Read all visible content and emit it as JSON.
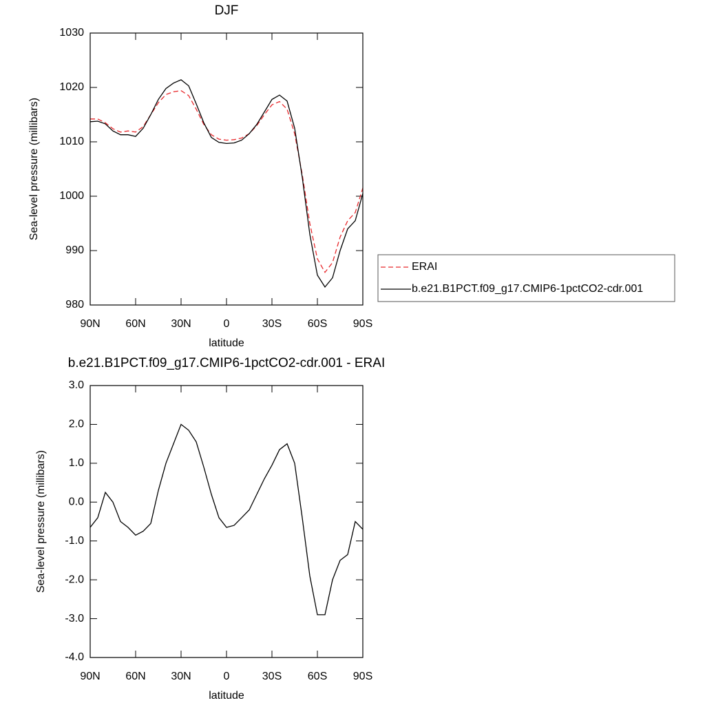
{
  "chart_data": [
    {
      "type": "line",
      "title": "DJF",
      "xlabel": "latitude",
      "ylabel": "Sea-level pressure (millibars)",
      "x": [
        90,
        85,
        80,
        75,
        70,
        65,
        60,
        55,
        50,
        45,
        40,
        35,
        30,
        25,
        20,
        15,
        10,
        5,
        0,
        -5,
        -10,
        -15,
        -20,
        -25,
        -30,
        -35,
        -40,
        -45,
        -50,
        -55,
        -60,
        -65,
        -70,
        -75,
        -80,
        -85,
        -90
      ],
      "series": [
        {
          "name": "ERAI",
          "color": "#e8272a",
          "dashed": true,
          "values": [
            1014.2,
            1014.2,
            1013.5,
            1012.4,
            1011.8,
            1012.0,
            1011.8,
            1012.8,
            1015.0,
            1017.2,
            1018.7,
            1019.2,
            1019.4,
            1018.5,
            1016.0,
            1013.2,
            1011.3,
            1010.5,
            1010.3,
            1010.4,
            1010.7,
            1011.5,
            1013.0,
            1015.0,
            1016.8,
            1017.4,
            1016.0,
            1011.5,
            1004.0,
            995.0,
            988.5,
            986.0,
            987.8,
            992.5,
            995.5,
            997.0,
            1001.5
          ]
        },
        {
          "name": "b.e21.B1PCT.f09_g17.CMIP6-1pctCO2-cdr.001",
          "color": "#000000",
          "dashed": false,
          "values": [
            1013.7,
            1013.8,
            1013.3,
            1012.0,
            1011.3,
            1011.3,
            1011.0,
            1012.5,
            1015.0,
            1017.8,
            1019.8,
            1020.8,
            1021.4,
            1020.3,
            1017.0,
            1013.5,
            1010.8,
            1009.9,
            1009.7,
            1009.8,
            1010.3,
            1011.5,
            1013.2,
            1015.5,
            1017.8,
            1018.6,
            1017.5,
            1012.5,
            1003.5,
            993.0,
            985.5,
            983.3,
            985.0,
            990.0,
            994.0,
            995.5,
            1000.5
          ]
        }
      ],
      "xlim": [
        90,
        -90
      ],
      "xticks": [
        {
          "value": 90,
          "label": "90N"
        },
        {
          "value": 60,
          "label": "60N"
        },
        {
          "value": 30,
          "label": "30N"
        },
        0,
        {
          "value": -30,
          "label": "30S"
        },
        {
          "value": -60,
          "label": "60S"
        },
        {
          "value": -90,
          "label": "90S"
        }
      ],
      "ylim": [
        980,
        1030
      ],
      "yticks": [
        980,
        990,
        1000,
        1010,
        1020,
        1030
      ],
      "legend": "right"
    },
    {
      "type": "line",
      "title": "b.e21.B1PCT.f09_g17.CMIP6-1pctCO2-cdr.001 - ERAI",
      "xlabel": "latitude",
      "ylabel": "Sea-level pressure (millibars)",
      "x": [
        90,
        85,
        80,
        75,
        70,
        65,
        60,
        55,
        50,
        45,
        40,
        35,
        30,
        25,
        20,
        15,
        10,
        5,
        0,
        -5,
        -10,
        -15,
        -20,
        -25,
        -30,
        -35,
        -40,
        -45,
        -50,
        -55,
        -60,
        -65,
        -70,
        -75,
        -80,
        -85,
        -90
      ],
      "series": [
        {
          "color": "#000000",
          "dashed": false,
          "values": [
            -0.65,
            -0.4,
            0.25,
            0.0,
            -0.5,
            -0.65,
            -0.85,
            -0.75,
            -0.55,
            0.3,
            1.0,
            1.5,
            2.0,
            1.85,
            1.55,
            0.9,
            0.2,
            -0.4,
            -0.65,
            -0.6,
            -0.4,
            -0.2,
            0.2,
            0.6,
            0.95,
            1.35,
            1.5,
            1.0,
            -0.4,
            -1.9,
            -2.9,
            -2.9,
            -2.0,
            -1.5,
            -1.35,
            -0.5,
            -0.7
          ]
        }
      ],
      "xlim": [
        90,
        -90
      ],
      "xticks": [
        {
          "value": 90,
          "label": "90N"
        },
        {
          "value": 60,
          "label": "60N"
        },
        {
          "value": 30,
          "label": "30N"
        },
        0,
        {
          "value": -30,
          "label": "30S"
        },
        {
          "value": -60,
          "label": "60S"
        },
        {
          "value": -90,
          "label": "90S"
        }
      ],
      "ylim": [
        -4,
        3
      ],
      "yticks": [
        {
          "value": -4,
          "label": "-4.0"
        },
        {
          "value": -3,
          "label": "-3.0"
        },
        {
          "value": -2,
          "label": "-2.0"
        },
        {
          "value": -1,
          "label": "-1.0"
        },
        {
          "value": 0,
          "label": "0.0"
        },
        {
          "value": 1,
          "label": "1.0"
        },
        {
          "value": 2,
          "label": "2.0"
        },
        {
          "value": 3,
          "label": "3.0"
        }
      ]
    }
  ]
}
